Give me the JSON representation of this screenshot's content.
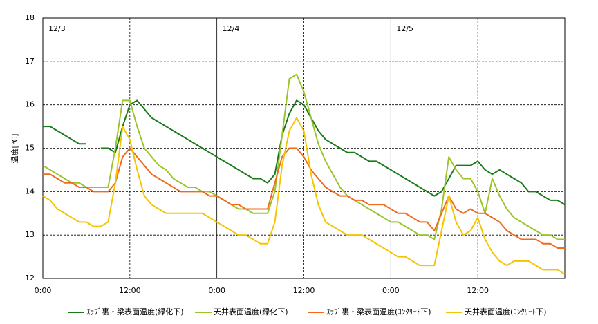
{
  "chart_data": {
    "type": "line",
    "ylabel": "温度[℃]",
    "annotations": [
      {
        "text": "12/3",
        "x": 0
      },
      {
        "text": "12/4",
        "x": 24
      },
      {
        "text": "12/5",
        "x": 48
      }
    ],
    "x": [
      0,
      1,
      2,
      3,
      4,
      5,
      6,
      7,
      8,
      9,
      10,
      11,
      12,
      13,
      14,
      15,
      16,
      17,
      18,
      19,
      20,
      21,
      22,
      23,
      24,
      25,
      26,
      27,
      28,
      29,
      30,
      31,
      32,
      33,
      34,
      35,
      36,
      37,
      38,
      39,
      40,
      41,
      42,
      43,
      44,
      45,
      46,
      47,
      48,
      49,
      50,
      51,
      52,
      53,
      54,
      55,
      56,
      57,
      58,
      59,
      60,
      61,
      62,
      63,
      64,
      65,
      66,
      67,
      68,
      69,
      70,
      71,
      72
    ],
    "xlim": [
      0,
      72
    ],
    "xticks": [
      {
        "value": 0,
        "label": "0:00"
      },
      {
        "value": 12,
        "label": "12:00"
      },
      {
        "value": 24,
        "label": "0:00"
      },
      {
        "value": 36,
        "label": "12:00"
      },
      {
        "value": 48,
        "label": "0:00"
      },
      {
        "value": 60,
        "label": "12:00"
      }
    ],
    "ylim": [
      12,
      18
    ],
    "yticks": [
      12,
      13,
      14,
      15,
      16,
      17,
      18
    ],
    "grid": true,
    "legend": "bottom",
    "series": [
      {
        "name": "ｽﾗﾌﾞ裏・梁表面温度(緑化下)",
        "color": "#1a7a1a",
        "values": [
          15.5,
          15.5,
          15.4,
          15.3,
          15.2,
          15.1,
          15.1,
          null,
          15.0,
          15.0,
          14.9,
          15.5,
          16.0,
          16.1,
          15.9,
          15.7,
          15.6,
          15.5,
          15.4,
          15.3,
          15.2,
          15.1,
          15.0,
          14.9,
          14.8,
          14.7,
          14.6,
          14.5,
          14.4,
          14.3,
          14.3,
          14.2,
          14.4,
          15.3,
          15.8,
          16.1,
          16.0,
          15.7,
          15.4,
          15.2,
          15.1,
          15.0,
          14.9,
          14.9,
          14.8,
          14.7,
          14.7,
          14.6,
          14.5,
          14.4,
          14.3,
          14.2,
          14.1,
          14.0,
          13.9,
          14.0,
          14.3,
          14.6,
          14.6,
          14.6,
          14.7,
          14.5,
          14.4,
          14.5,
          14.4,
          14.3,
          14.2,
          14.0,
          14.0,
          13.9,
          13.8,
          13.8,
          13.7
        ]
      },
      {
        "name": "天井表面温度(緑化下)",
        "color": "#9ac42a",
        "values": [
          14.6,
          14.5,
          14.4,
          14.3,
          14.2,
          14.2,
          14.1,
          14.1,
          14.1,
          14.1,
          15.0,
          16.1,
          16.1,
          15.5,
          15.0,
          14.8,
          14.6,
          14.5,
          14.3,
          14.2,
          14.1,
          14.1,
          14.0,
          14.0,
          13.9,
          13.8,
          13.7,
          13.6,
          13.6,
          13.5,
          13.5,
          13.5,
          14.0,
          15.3,
          16.6,
          16.7,
          16.3,
          15.7,
          15.1,
          14.7,
          14.4,
          14.1,
          13.9,
          13.8,
          13.7,
          13.6,
          13.5,
          13.4,
          13.3,
          13.3,
          13.2,
          13.1,
          13.0,
          13.0,
          12.9,
          13.6,
          14.8,
          14.5,
          14.3,
          14.3,
          14.0,
          13.5,
          14.3,
          13.9,
          13.6,
          13.4,
          13.3,
          13.2,
          13.1,
          13.0,
          13.0,
          12.9,
          12.9
        ]
      },
      {
        "name": "ｽﾗﾌﾞ裏・梁表面温度(ｺﾝｸﾘｰﾄ下)",
        "color": "#f06a1e",
        "values": [
          14.4,
          14.4,
          14.3,
          14.2,
          14.2,
          14.1,
          14.1,
          14.0,
          14.0,
          14.0,
          14.2,
          14.8,
          15.0,
          14.8,
          14.6,
          14.4,
          14.3,
          14.2,
          14.1,
          14.0,
          14.0,
          14.0,
          14.0,
          13.9,
          13.9,
          13.8,
          13.7,
          13.7,
          13.6,
          13.6,
          13.6,
          13.6,
          14.2,
          14.8,
          15.0,
          15.0,
          14.8,
          14.5,
          14.3,
          14.1,
          14.0,
          13.9,
          13.9,
          13.8,
          13.8,
          13.7,
          13.7,
          13.7,
          13.6,
          13.5,
          13.5,
          13.4,
          13.3,
          13.3,
          13.1,
          13.5,
          13.9,
          13.6,
          13.5,
          13.6,
          13.5,
          13.5,
          13.4,
          13.3,
          13.1,
          13.0,
          12.9,
          12.9,
          12.9,
          12.8,
          12.8,
          12.7,
          12.7
        ]
      },
      {
        "name": "天井表面温度(ｺﾝｸﾘｰﾄ下)",
        "color": "#f5c400",
        "values": [
          13.9,
          13.8,
          13.6,
          13.5,
          13.4,
          13.3,
          13.3,
          13.2,
          13.2,
          13.3,
          14.2,
          15.5,
          15.2,
          14.5,
          13.9,
          13.7,
          13.6,
          13.5,
          13.5,
          13.5,
          13.5,
          13.5,
          13.5,
          13.4,
          13.3,
          13.2,
          13.1,
          13.0,
          13.0,
          12.9,
          12.8,
          12.8,
          13.3,
          14.6,
          15.4,
          15.7,
          15.4,
          14.4,
          13.7,
          13.3,
          13.2,
          13.1,
          13.0,
          13.0,
          13.0,
          12.9,
          12.8,
          12.7,
          12.6,
          12.5,
          12.5,
          12.4,
          12.3,
          12.3,
          12.3,
          13.1,
          13.9,
          13.3,
          13.0,
          13.1,
          13.4,
          12.9,
          12.6,
          12.4,
          12.3,
          12.4,
          12.4,
          12.4,
          12.3,
          12.2,
          12.2,
          12.2,
          12.1
        ]
      }
    ]
  }
}
